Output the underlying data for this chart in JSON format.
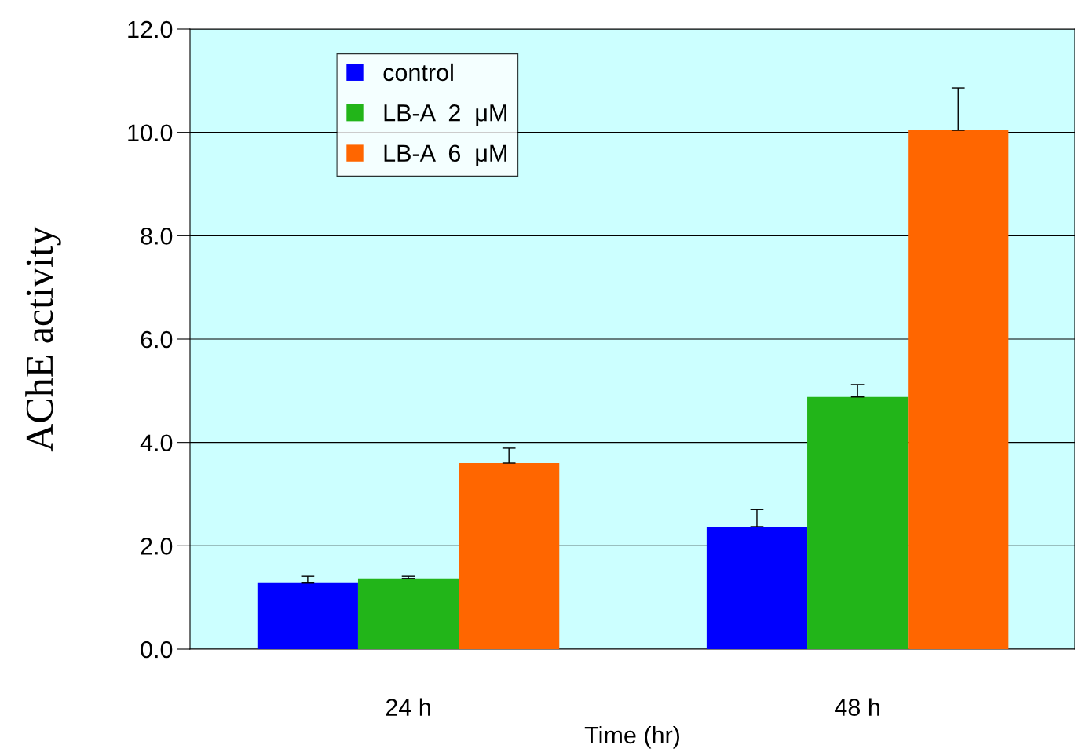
{
  "chart_data": {
    "type": "bar",
    "xlabel": "Time (hr)",
    "ylabel": "AChE activity",
    "categories": [
      "24 h",
      "48 h"
    ],
    "series": [
      {
        "name": "control",
        "color": "#0000ff",
        "values": [
          1.28,
          2.37
        ],
        "errors": [
          [
            1.28,
            1.41
          ],
          [
            2.37,
            2.7
          ]
        ]
      },
      {
        "name": "LB-A  2  μM",
        "color": "#22b519",
        "values": [
          1.37,
          4.88
        ],
        "errors": [
          [
            1.37,
            1.41
          ],
          [
            4.88,
            5.12
          ]
        ]
      },
      {
        "name": "LB-A  6  μM",
        "color": "#ff6600",
        "values": [
          3.6,
          10.04
        ],
        "errors": [
          [
            3.6,
            3.89
          ],
          [
            10.04,
            10.86
          ]
        ]
      }
    ],
    "ylim": [
      0,
      12
    ],
    "yticks": [
      {
        "value": 0,
        "label": "0.0"
      },
      {
        "value": 2,
        "label": "2.0"
      },
      {
        "value": 4,
        "label": "4.0"
      },
      {
        "value": 6,
        "label": "6.0"
      },
      {
        "value": 8,
        "label": "8.0"
      },
      {
        "value": 10,
        "label": "10.0"
      },
      {
        "value": 12,
        "label": "12.0"
      }
    ],
    "grid": "y",
    "legend": "top left"
  }
}
